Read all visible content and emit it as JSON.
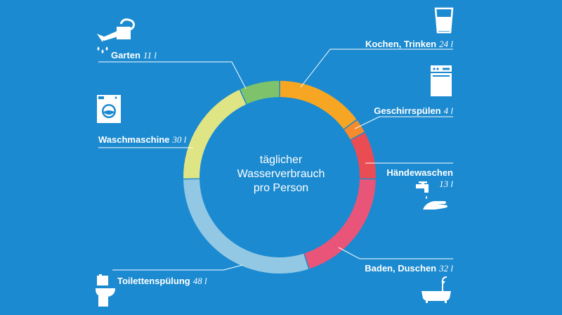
{
  "chart_data": {
    "type": "donut",
    "unit": "l",
    "center_label": [
      "täglicher",
      "Wasserverbrauch",
      "pro Person"
    ],
    "series": [
      {
        "name": "Kochen, Trinken",
        "value": 24,
        "unit": "l",
        "color": "#f6a623",
        "icon": "drinking-glass-icon"
      },
      {
        "name": "Geschirrspülen",
        "value": 4,
        "unit": "l",
        "color": "#f58b2d",
        "icon": "dishwasher-icon"
      },
      {
        "name": "Händewaschen",
        "value": 13,
        "unit": "l",
        "color": "#ea4c54",
        "icon": "faucet-hands-icon"
      },
      {
        "name": "Baden, Duschen",
        "value": 32,
        "unit": "l",
        "color": "#e95578",
        "icon": "bathtub-icon"
      },
      {
        "name": "Toilettenspülung",
        "value": 48,
        "unit": "l",
        "color": "#93c8e4",
        "icon": "toilet-icon"
      },
      {
        "name": "Waschmaschine",
        "value": 30,
        "unit": "l",
        "color": "#dfe584",
        "icon": "washing-machine-icon"
      },
      {
        "name": "Garten",
        "value": 11,
        "unit": "l",
        "color": "#7ec36b",
        "icon": "watering-can-icon"
      }
    ]
  },
  "colors": {
    "background": "#1b8ad0",
    "text": "#ffffff"
  }
}
